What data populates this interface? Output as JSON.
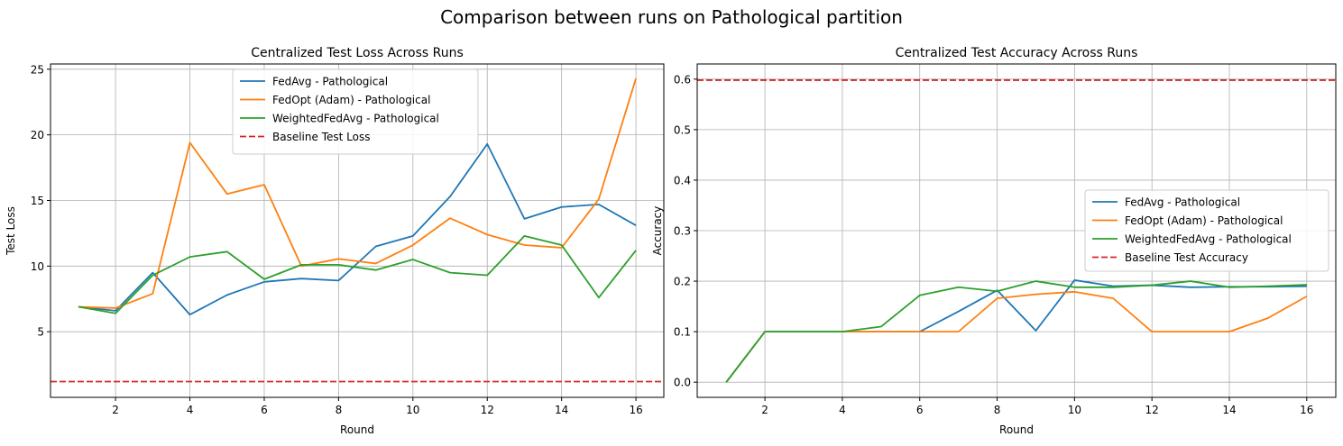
{
  "suptitle": "Comparison between runs on Pathological partition",
  "colors": {
    "fedavg": "#1f77b4",
    "fedopt": "#ff7f0e",
    "weighted": "#2ca02c",
    "baseline": "#d62728",
    "grid": "#b0b0b0"
  },
  "chart_data": [
    {
      "type": "line",
      "title": "Centralized Test Loss Across Runs",
      "xlabel": "Round",
      "ylabel": "Test Loss",
      "xlim": [
        0.25,
        16.75
      ],
      "ylim": [
        0.0,
        25.4
      ],
      "xticks": [
        2,
        4,
        6,
        8,
        10,
        12,
        14,
        16
      ],
      "yticks": [
        5,
        10,
        15,
        20,
        25
      ],
      "grid": true,
      "legend_position": "upper-center",
      "x": [
        1,
        2,
        3,
        4,
        5,
        6,
        7,
        8,
        9,
        10,
        11,
        12,
        13,
        14,
        15,
        16
      ],
      "series": [
        {
          "name": "FedAvg - Pathological",
          "color_key": "fedavg",
          "values": [
            6.9,
            6.6,
            9.5,
            6.3,
            7.8,
            8.8,
            9.05,
            8.9,
            11.5,
            12.3,
            15.3,
            19.3,
            13.6,
            14.5,
            14.7,
            13.1
          ]
        },
        {
          "name": "FedOpt (Adam) - Pathological",
          "color_key": "fedopt",
          "values": [
            6.9,
            6.8,
            7.9,
            19.4,
            15.5,
            16.2,
            10.0,
            10.55,
            10.2,
            11.6,
            13.65,
            12.4,
            11.6,
            11.4,
            15.1,
            24.3
          ]
        },
        {
          "name": "WeightedFedAvg - Pathological",
          "color_key": "weighted",
          "values": [
            6.9,
            6.4,
            9.3,
            10.7,
            11.1,
            9.0,
            10.1,
            10.1,
            9.7,
            10.5,
            9.5,
            9.3,
            12.3,
            11.6,
            7.6,
            11.2
          ]
        }
      ],
      "baseline": {
        "name": "Baseline Test Loss",
        "value": 1.2
      }
    },
    {
      "type": "line",
      "title": "Centralized Test Accuracy Across Runs",
      "xlabel": "Round",
      "ylabel": "Accuracy",
      "xlim": [
        0.25,
        16.75
      ],
      "ylim": [
        -0.03,
        0.63
      ],
      "xticks": [
        2,
        4,
        6,
        8,
        10,
        12,
        14,
        16
      ],
      "yticks": [
        0.0,
        0.1,
        0.2,
        0.3,
        0.4,
        0.5,
        0.6
      ],
      "yticklabels": [
        "0.0",
        "0.1",
        "0.2",
        "0.3",
        "0.4",
        "0.5",
        "0.6"
      ],
      "grid": true,
      "legend_position": "center-right",
      "x": [
        1,
        2,
        3,
        4,
        5,
        6,
        7,
        8,
        9,
        10,
        11,
        12,
        13,
        14,
        15,
        16
      ],
      "series": [
        {
          "name": "FedAvg - Pathological",
          "color_key": "fedavg",
          "values": [
            0.0,
            0.1,
            0.1,
            0.1,
            0.1,
            0.1,
            0.14,
            0.182,
            0.102,
            0.202,
            0.19,
            0.192,
            0.188,
            0.189,
            0.189,
            0.19
          ]
        },
        {
          "name": "FedOpt (Adam) - Pathological",
          "color_key": "fedopt",
          "values": [
            0.0,
            0.1,
            0.1,
            0.1,
            0.1,
            0.1,
            0.1,
            0.166,
            0.174,
            0.179,
            0.166,
            0.1,
            0.1,
            0.1,
            0.127,
            0.17
          ]
        },
        {
          "name": "WeightedFedAvg - Pathological",
          "color_key": "weighted",
          "values": [
            0.0,
            0.1,
            0.1,
            0.1,
            0.11,
            0.172,
            0.188,
            0.18,
            0.2,
            0.188,
            0.188,
            0.192,
            0.2,
            0.188,
            0.19,
            0.193
          ]
        }
      ],
      "baseline": {
        "name": "Baseline Test Accuracy",
        "value": 0.598
      }
    }
  ]
}
